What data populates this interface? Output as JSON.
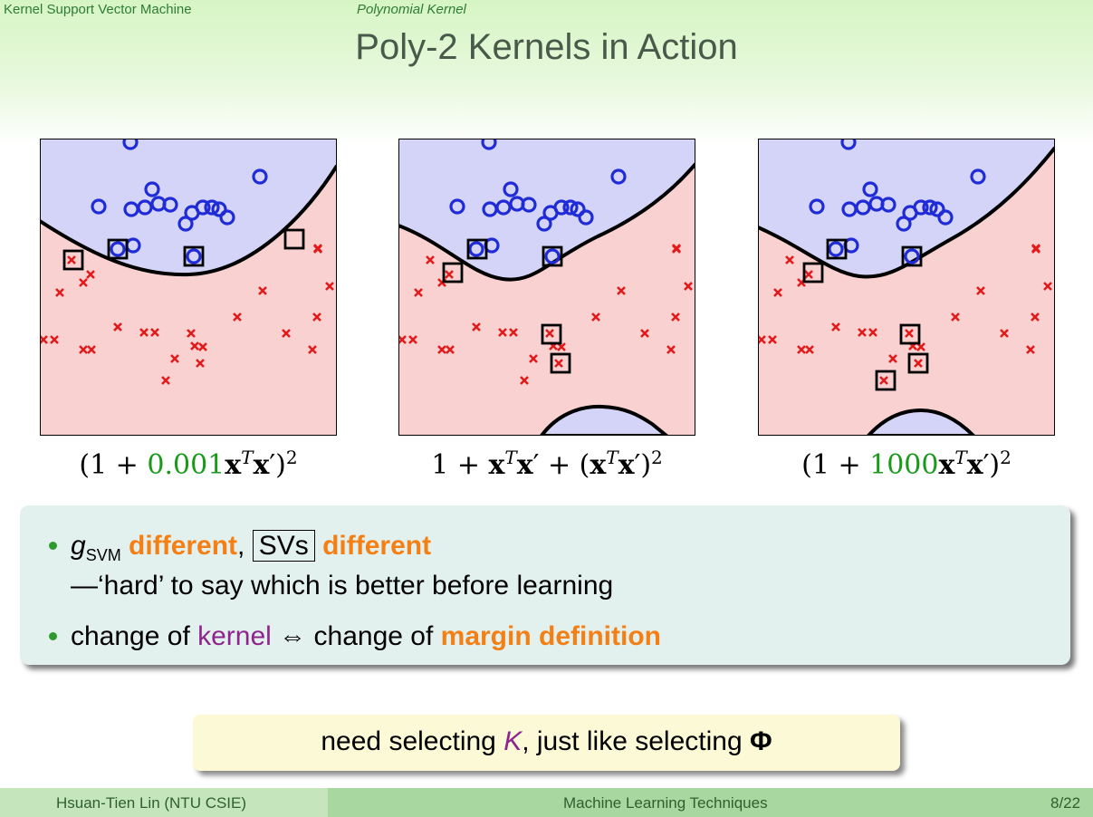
{
  "header": {
    "section": "Kernel Support Vector Machine",
    "subsection": "Polynomial Kernel",
    "title": "Poly-2 Kernels in Action"
  },
  "colors": {
    "positive_region": "#d3d4f8",
    "negative_region": "#fad1d1",
    "circle": "#1f2bd6",
    "cross": "#e11a1a",
    "green_coef": "#1a9a1a",
    "orange": "#f47f14",
    "purple": "#8e248e"
  },
  "plots": [
    {
      "formula": {
        "a": "(1 + ",
        "coef": "0.001",
        "b": "x",
        "c": "T",
        "d": "x",
        "e": "′)",
        "f": "2"
      }
    },
    {
      "formula": {
        "a": "1 + ",
        "b": "x",
        "c": "T",
        "d": "x",
        "e": "′ + (",
        "b2": "x",
        "c2": "T",
        "d2": "x",
        "e2": "′)",
        "f": "2"
      }
    },
    {
      "formula": {
        "a": "(1 + ",
        "coef": "1000",
        "b": "x",
        "c": "T",
        "d": "x",
        "e": "′)",
        "f": "2"
      }
    }
  ],
  "bullets": {
    "b1_g": "g",
    "b1_sub": "SVM",
    "b1_diff1": "different",
    "b1_comma": ", ",
    "b1_svs": "SVs",
    "b1_diff2": "different",
    "b1_line2": "—‘hard’ to say which is better before learning",
    "b2_pre": "change of ",
    "b2_kernel": "kernel",
    "b2_mid": " ⇔ change of ",
    "b2_margin": "margin definition"
  },
  "note": {
    "pre": "need selecting ",
    "k": "K",
    "mid": ", just like selecting ",
    "phi": "Φ"
  },
  "footer": {
    "author": "Hsuan-Tien Lin (NTU CSIE)",
    "course": "Machine Learning Techniques",
    "page": "8/22"
  }
}
